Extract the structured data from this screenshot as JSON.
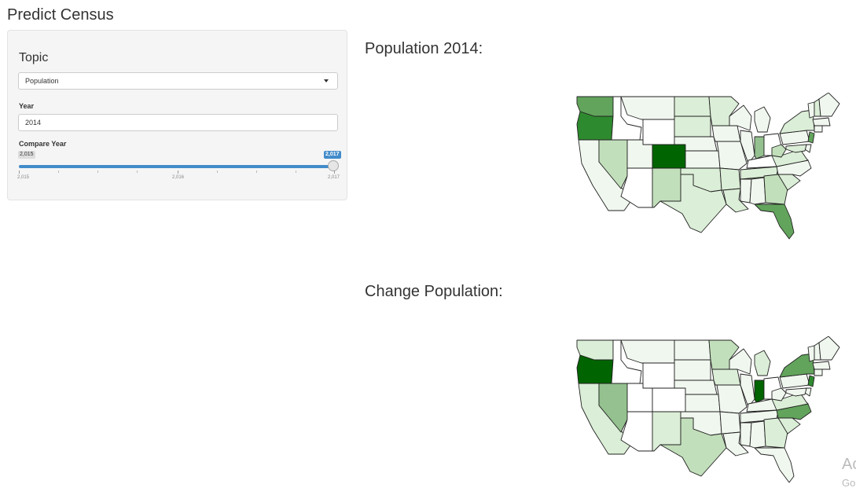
{
  "app": {
    "title": "Predict Census"
  },
  "sidebar": {
    "topic_label": "Topic",
    "topic_value": "Population",
    "year_label": "Year",
    "year_value": "2014",
    "compare_label": "Compare Year",
    "slider": {
      "min_badge": "2,015",
      "max_badge": "2,017",
      "value": 2017,
      "min": 2015,
      "max": 2017,
      "tick_labels": [
        "2,015",
        "2,016",
        "2,017"
      ]
    }
  },
  "main": {
    "map1_title": "Population 2014:",
    "map2_title": "Change Population:"
  },
  "colors": {
    "accent": "#428bca",
    "scale": [
      "#ffffff",
      "#f0f7ef",
      "#dbeed7",
      "#c2dfbb",
      "#94c18f",
      "#62a45c",
      "#2e8a2e",
      "#006400"
    ]
  },
  "watermark": {
    "line1": "Ac",
    "line2": "Go"
  }
}
